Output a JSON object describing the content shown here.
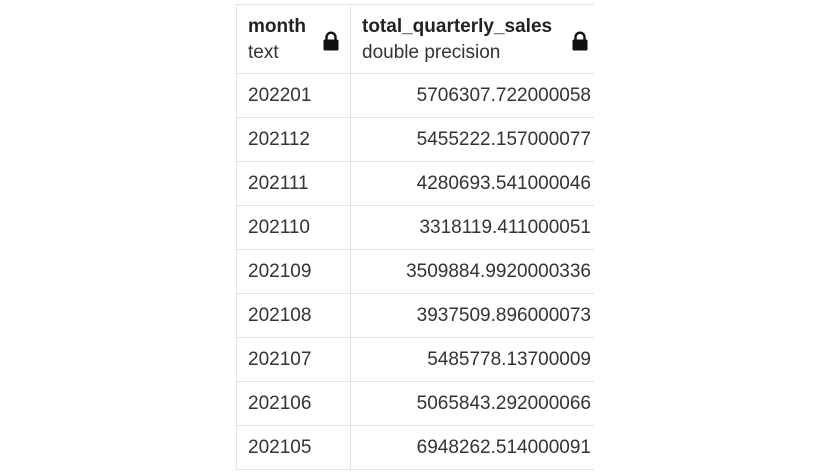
{
  "columns": [
    {
      "name": "month",
      "type": "text"
    },
    {
      "name": "total_quarterly_sales",
      "type": "double precision"
    }
  ],
  "lock_icon": "lock-icon",
  "rows": [
    {
      "month": "202201",
      "total_quarterly_sales": "5706307.722000058"
    },
    {
      "month": "202112",
      "total_quarterly_sales": "5455222.157000077"
    },
    {
      "month": "202111",
      "total_quarterly_sales": "4280693.541000046"
    },
    {
      "month": "202110",
      "total_quarterly_sales": "3318119.411000051"
    },
    {
      "month": "202109",
      "total_quarterly_sales": "3509884.9920000336"
    },
    {
      "month": "202108",
      "total_quarterly_sales": "3937509.896000073"
    },
    {
      "month": "202107",
      "total_quarterly_sales": "5485778.13700009"
    },
    {
      "month": "202106",
      "total_quarterly_sales": "5065843.292000066"
    },
    {
      "month": "202105",
      "total_quarterly_sales": "6948262.514000091"
    }
  ]
}
